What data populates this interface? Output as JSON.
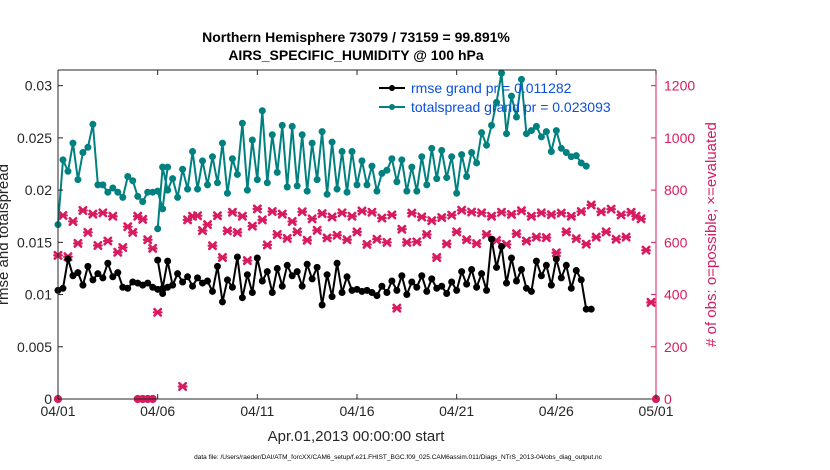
{
  "titles": {
    "line1": "Northern Hemisphere 73079 / 73159 = 99.891%",
    "line2": "AIRS_SPECIFIC_HUMIDITY @ 100 hPa"
  },
  "footnote": "data file: /Users/raeder/DAI/ATM_forcXX/CAM6_setup/f.e21.FHIST_BGC.f09_025.CAM6assim.011/Diags_NTrS_2013-04/obs_diag_output.nc",
  "colors": {
    "rmse": "#000000",
    "spread": "#00807f",
    "obs": "#d81b60",
    "legend_text": "#0a4fe0",
    "axis": "#262626"
  },
  "chart_data": {
    "type": "line",
    "xlabel": "Apr.01,2013 00:00:00 start",
    "ylabel_left": "rmse and totalspread",
    "ylabel_right": "# of obs: o=possible; ×=evaluated",
    "xlim": [
      0,
      30
    ],
    "ylim_left": [
      0,
      0.0315
    ],
    "ylim_right": [
      0,
      1260
    ],
    "x_tick_labels": [
      "04/01",
      "04/06",
      "04/11",
      "04/16",
      "04/21",
      "04/26",
      "05/01"
    ],
    "x_tick_values": [
      0,
      5,
      10,
      15,
      20,
      25,
      30
    ],
    "y_left_ticks": [
      "0",
      "0.005",
      "0.01",
      "0.015",
      "0.02",
      "0.025",
      "0.03"
    ],
    "y_left_tick_values": [
      0,
      0.005,
      0.01,
      0.015,
      0.02,
      0.025,
      0.03
    ],
    "y_right_ticks": [
      "0",
      "200",
      "400",
      "600",
      "800",
      "1000",
      "1200"
    ],
    "y_right_tick_values": [
      0,
      200,
      400,
      600,
      800,
      1000,
      1200
    ],
    "grid": false,
    "legend_position": "top-right",
    "x_step_days": 0.25,
    "series": [
      {
        "name": "rmse grand pr = 0.011282",
        "axis": "left",
        "segments": [
          [
            0.0104,
            0.0106,
            0.0134,
            0.0118,
            0.0121,
            0.0109,
            0.0127,
            0.0114,
            0.012,
            0.0116,
            0.013,
            0.0117,
            0.0121,
            0.0107,
            0.0106,
            0.0112,
            0.0111,
            0.0109,
            0.0111,
            0.0107,
            0.0105,
            0.0101,
            0.0107
          ],
          [
            0.0133,
            0.0106,
            0.0132,
            0.0109,
            0.012,
            0.0112,
            0.0117,
            0.0108,
            0.0116,
            0.0111,
            0.0113,
            0.0103,
            0.0127,
            0.0093,
            0.0114,
            0.0107,
            0.0136,
            0.0097,
            0.0119,
            0.0102,
            0.0135,
            0.0113,
            0.0122,
            0.0102,
            0.0125,
            0.0108,
            0.0128,
            0.0118,
            0.0122,
            0.0108,
            0.0129,
            0.0115,
            0.0126,
            0.009,
            0.0119,
            0.0098,
            0.013,
            0.0102,
            0.0117,
            0.0104,
            0.0105,
            0.0103,
            0.0104,
            0.0102,
            0.0099,
            0.0108,
            0.0102,
            0.0113,
            0.0104,
            0.0118,
            0.01,
            0.0112,
            0.0107,
            0.0118,
            0.0103,
            0.0115,
            0.0106,
            0.0108,
            0.0101,
            0.0112,
            0.0104,
            0.0122,
            0.011,
            0.0124,
            0.0107,
            0.012,
            0.0104,
            0.0153,
            0.0126,
            0.0146,
            0.0111,
            0.0135,
            0.0113,
            0.0124,
            0.0106,
            0.0103,
            0.0132,
            0.0118,
            0.0128,
            0.0109,
            0.0134,
            0.0116,
            0.0128,
            0.0106,
            0.0123,
            0.0114,
            0.0086,
            0.0086
          ]
        ],
        "segment_starts": [
          0,
          5
        ]
      },
      {
        "name": "totalspread grand pr = 0.023093",
        "axis": "left",
        "segments": [
          [
            0.0167,
            0.0229,
            0.0218,
            0.0245,
            0.021,
            0.0236,
            0.0241,
            0.0263,
            0.0205,
            0.0205,
            0.0198,
            0.0202,
            0.0198,
            0.0193,
            0.0213,
            0.0209,
            0.0194,
            0.0189,
            0.0198,
            0.0198,
            0.0199,
            0.0182,
            0.0222
          ],
          [
            0.0163,
            0.0222,
            0.02,
            0.0211,
            0.0193,
            0.022,
            0.0201,
            0.0237,
            0.0201,
            0.0228,
            0.0205,
            0.0232,
            0.0207,
            0.0245,
            0.0197,
            0.023,
            0.0215,
            0.0264,
            0.02,
            0.0248,
            0.021,
            0.0276,
            0.0207,
            0.0253,
            0.0217,
            0.0262,
            0.0203,
            0.0261,
            0.0204,
            0.0253,
            0.0199,
            0.0245,
            0.021,
            0.0256,
            0.0196,
            0.0246,
            0.0201,
            0.0237,
            0.0198,
            0.0237,
            0.0205,
            0.0228,
            0.0205,
            0.0223,
            0.0199,
            0.0216,
            0.0219,
            0.023,
            0.0208,
            0.0229,
            0.0199,
            0.0222,
            0.0199,
            0.0232,
            0.0205,
            0.024,
            0.0211,
            0.0238,
            0.0212,
            0.0232,
            0.0197,
            0.0234,
            0.0213,
            0.0236,
            0.0226,
            0.0255,
            0.0243,
            0.0262,
            0.0284,
            0.0312,
            0.0254,
            0.029,
            0.027,
            0.0306,
            0.0254,
            0.0257,
            0.0261,
            0.0251,
            0.0256,
            0.0237,
            0.0257,
            0.024,
            0.0236,
            0.0232,
            0.0233,
            0.0226,
            0.0223
          ]
        ],
        "segment_starts": [
          0,
          5
        ]
      }
    ],
    "obs_possible": [
      {
        "x": 0,
        "y": 0
      },
      {
        "x": 4,
        "y": 0
      },
      {
        "x": 4.25,
        "y": 0
      },
      {
        "x": 4.5,
        "y": 0
      },
      {
        "x": 4.75,
        "y": 0
      },
      {
        "x": 30,
        "y": 0
      }
    ],
    "obs_evaluated": [
      {
        "x": 0.0,
        "y": 550
      },
      {
        "x": 0.25,
        "y": 703
      },
      {
        "x": 0.5,
        "y": 545
      },
      {
        "x": 0.75,
        "y": 680
      },
      {
        "x": 1.0,
        "y": 596
      },
      {
        "x": 1.25,
        "y": 722
      },
      {
        "x": 1.5,
        "y": 638
      },
      {
        "x": 1.75,
        "y": 708
      },
      {
        "x": 2.0,
        "y": 588
      },
      {
        "x": 2.25,
        "y": 713
      },
      {
        "x": 2.5,
        "y": 605
      },
      {
        "x": 2.75,
        "y": 700
      },
      {
        "x": 3.0,
        "y": 562
      },
      {
        "x": 3.25,
        "y": 580
      },
      {
        "x": 3.5,
        "y": 660
      },
      {
        "x": 3.75,
        "y": 638
      },
      {
        "x": 4.0,
        "y": 700
      },
      {
        "x": 4.25,
        "y": 688
      },
      {
        "x": 4.5,
        "y": 610
      },
      {
        "x": 4.75,
        "y": 577
      },
      {
        "x": 5.0,
        "y": 332
      },
      {
        "x": 6.25,
        "y": 48
      },
      {
        "x": 6.5,
        "y": 686
      },
      {
        "x": 6.75,
        "y": 700
      },
      {
        "x": 7.0,
        "y": 702
      },
      {
        "x": 7.25,
        "y": 645
      },
      {
        "x": 7.5,
        "y": 668
      },
      {
        "x": 7.75,
        "y": 587
      },
      {
        "x": 8.0,
        "y": 702
      },
      {
        "x": 8.25,
        "y": 542
      },
      {
        "x": 8.5,
        "y": 644
      },
      {
        "x": 8.75,
        "y": 715
      },
      {
        "x": 9.0,
        "y": 638
      },
      {
        "x": 9.25,
        "y": 700
      },
      {
        "x": 9.5,
        "y": 530
      },
      {
        "x": 9.75,
        "y": 662
      },
      {
        "x": 10.0,
        "y": 728
      },
      {
        "x": 10.25,
        "y": 686
      },
      {
        "x": 10.5,
        "y": 590
      },
      {
        "x": 10.75,
        "y": 718
      },
      {
        "x": 11.0,
        "y": 630
      },
      {
        "x": 11.25,
        "y": 708
      },
      {
        "x": 11.5,
        "y": 615
      },
      {
        "x": 11.75,
        "y": 680
      },
      {
        "x": 12.0,
        "y": 640
      },
      {
        "x": 12.25,
        "y": 717
      },
      {
        "x": 12.5,
        "y": 608
      },
      {
        "x": 12.75,
        "y": 690
      },
      {
        "x": 13.0,
        "y": 646
      },
      {
        "x": 13.25,
        "y": 710
      },
      {
        "x": 13.5,
        "y": 617
      },
      {
        "x": 13.75,
        "y": 697
      },
      {
        "x": 14.0,
        "y": 627
      },
      {
        "x": 14.25,
        "y": 713
      },
      {
        "x": 14.5,
        "y": 610
      },
      {
        "x": 14.75,
        "y": 700
      },
      {
        "x": 15.0,
        "y": 640
      },
      {
        "x": 15.25,
        "y": 720
      },
      {
        "x": 15.5,
        "y": 592
      },
      {
        "x": 15.75,
        "y": 715
      },
      {
        "x": 16.0,
        "y": 612
      },
      {
        "x": 16.25,
        "y": 693
      },
      {
        "x": 16.5,
        "y": 600
      },
      {
        "x": 16.75,
        "y": 705
      },
      {
        "x": 17.0,
        "y": 348
      },
      {
        "x": 17.25,
        "y": 650
      },
      {
        "x": 17.5,
        "y": 600
      },
      {
        "x": 17.75,
        "y": 712
      },
      {
        "x": 18.0,
        "y": 602
      },
      {
        "x": 18.25,
        "y": 697
      },
      {
        "x": 18.5,
        "y": 630
      },
      {
        "x": 18.75,
        "y": 683
      },
      {
        "x": 19.0,
        "y": 542
      },
      {
        "x": 19.25,
        "y": 695
      },
      {
        "x": 19.5,
        "y": 594
      },
      {
        "x": 19.75,
        "y": 704
      },
      {
        "x": 20.0,
        "y": 640
      },
      {
        "x": 20.25,
        "y": 723
      },
      {
        "x": 20.5,
        "y": 610
      },
      {
        "x": 20.75,
        "y": 716
      },
      {
        "x": 21.0,
        "y": 595
      },
      {
        "x": 21.25,
        "y": 713
      },
      {
        "x": 21.5,
        "y": 630
      },
      {
        "x": 21.75,
        "y": 700
      },
      {
        "x": 22.0,
        "y": 607
      },
      {
        "x": 22.25,
        "y": 715
      },
      {
        "x": 22.5,
        "y": 592
      },
      {
        "x": 22.75,
        "y": 707
      },
      {
        "x": 23.0,
        "y": 633
      },
      {
        "x": 23.25,
        "y": 721
      },
      {
        "x": 23.5,
        "y": 605
      },
      {
        "x": 23.75,
        "y": 700
      },
      {
        "x": 24.0,
        "y": 620
      },
      {
        "x": 24.25,
        "y": 713
      },
      {
        "x": 24.5,
        "y": 618
      },
      {
        "x": 24.75,
        "y": 706
      },
      {
        "x": 25.0,
        "y": 560
      },
      {
        "x": 25.25,
        "y": 712
      },
      {
        "x": 25.5,
        "y": 640
      },
      {
        "x": 25.75,
        "y": 700
      },
      {
        "x": 26.0,
        "y": 614
      },
      {
        "x": 26.25,
        "y": 718
      },
      {
        "x": 26.5,
        "y": 593
      },
      {
        "x": 26.75,
        "y": 743
      },
      {
        "x": 27.0,
        "y": 620
      },
      {
        "x": 27.25,
        "y": 717
      },
      {
        "x": 27.5,
        "y": 640
      },
      {
        "x": 27.75,
        "y": 727
      },
      {
        "x": 28.0,
        "y": 612
      },
      {
        "x": 28.25,
        "y": 705
      },
      {
        "x": 28.5,
        "y": 620
      },
      {
        "x": 28.75,
        "y": 715
      },
      {
        "x": 29.0,
        "y": 700
      },
      {
        "x": 29.25,
        "y": 690
      },
      {
        "x": 29.5,
        "y": 570
      },
      {
        "x": 29.75,
        "y": 370
      }
    ]
  }
}
